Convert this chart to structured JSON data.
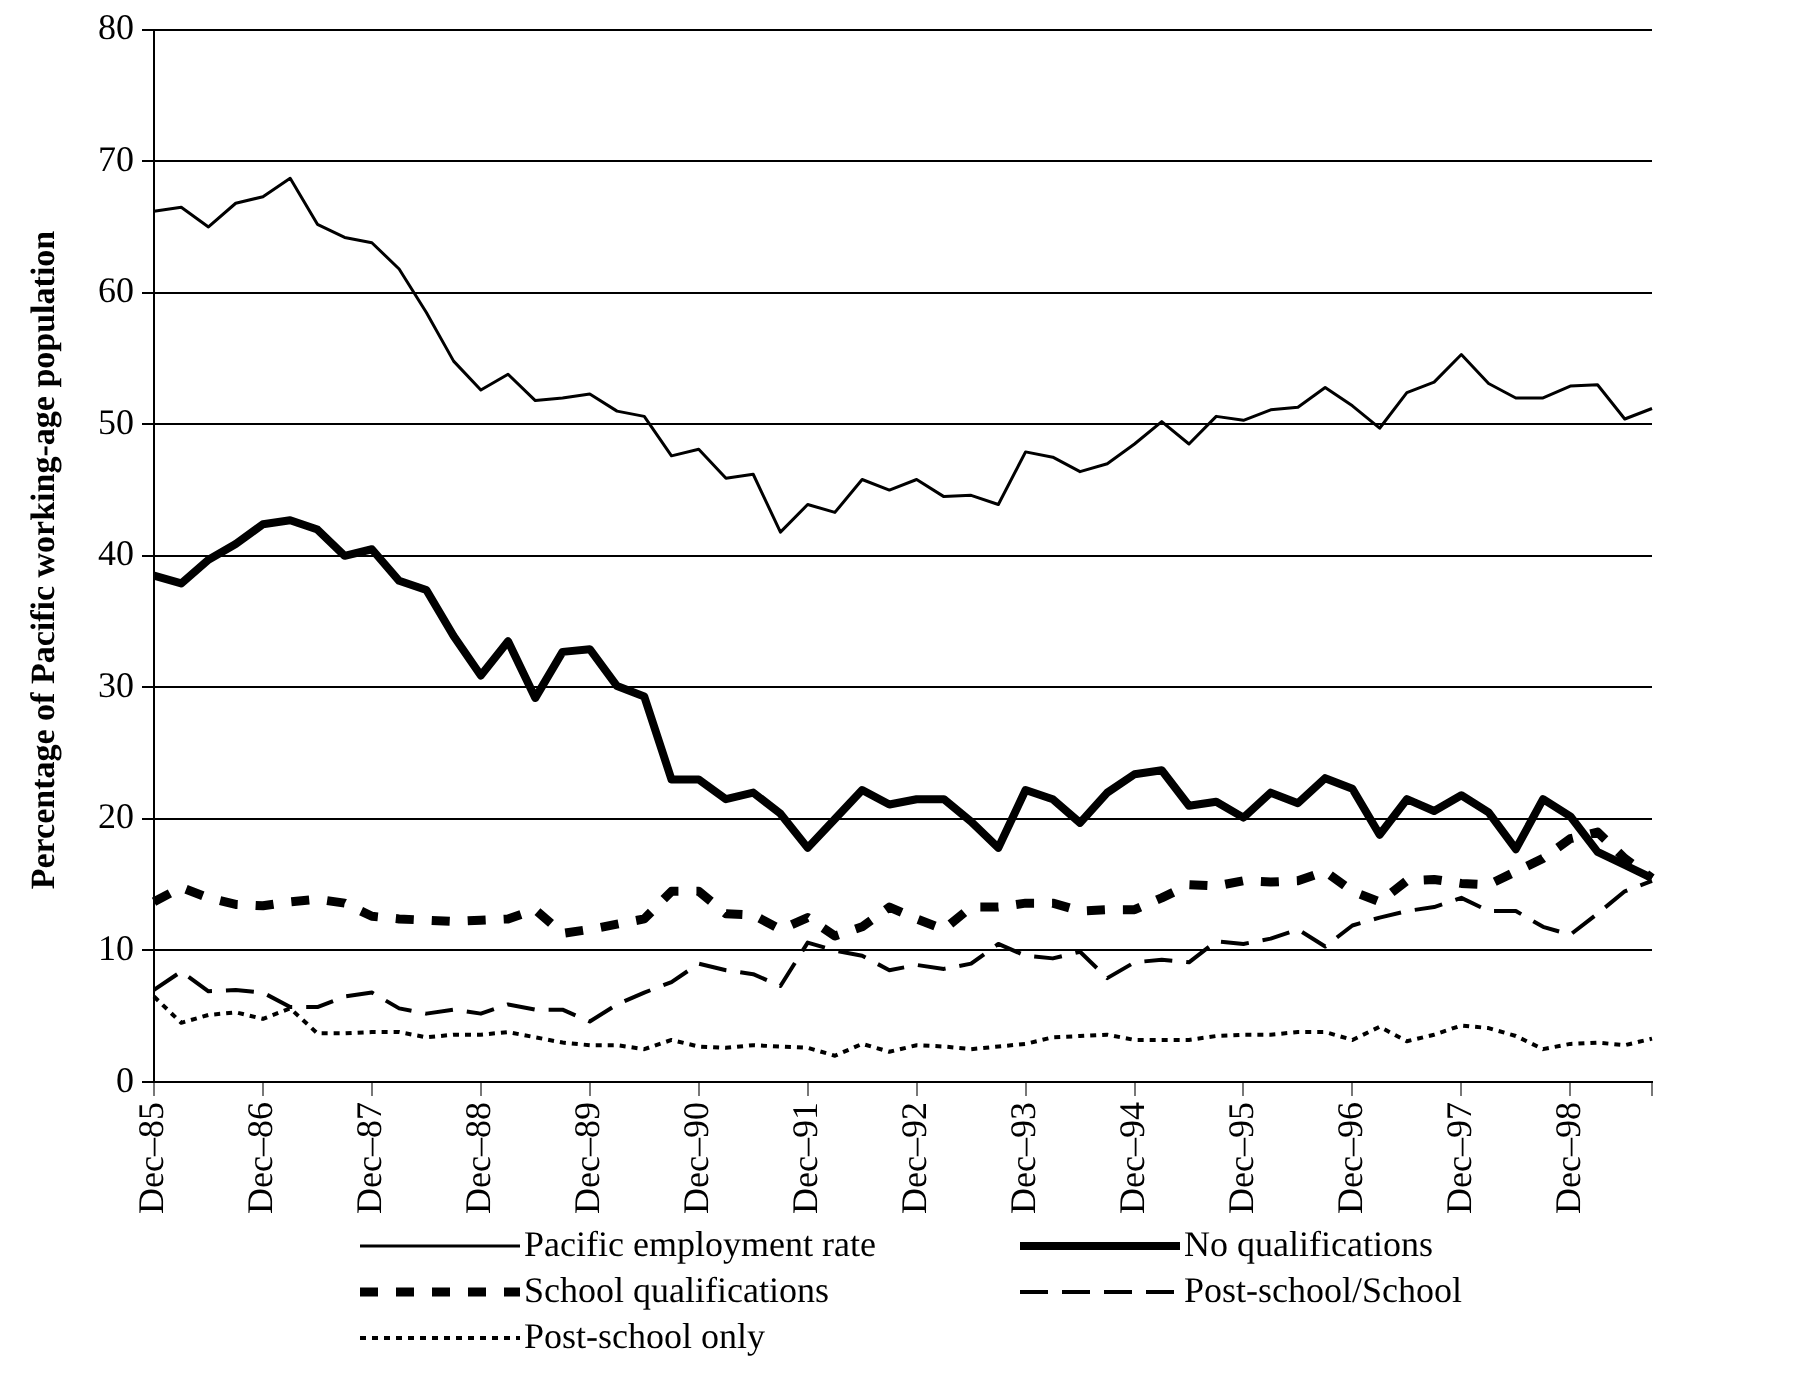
{
  "chart_data": {
    "type": "line",
    "ylabel": "Percentage of Pacific working-age population",
    "categories": [
      "Dec–85",
      null,
      null,
      null,
      "Dec–86",
      null,
      null,
      null,
      "Dec–87",
      null,
      null,
      null,
      "Dec–88",
      null,
      null,
      null,
      "Dec–89",
      null,
      null,
      null,
      "Dec–90",
      null,
      null,
      null,
      "Dec–91",
      null,
      null,
      null,
      "Dec–92",
      null,
      null,
      null,
      "Dec–93",
      null,
      null,
      null,
      "Dec–94",
      null,
      null,
      null,
      "Dec–95",
      null,
      null,
      null,
      "Dec–96",
      null,
      null,
      null,
      "Dec–97",
      null,
      null,
      null,
      "Dec–98",
      null,
      null,
      null
    ],
    "ylim": [
      0,
      80
    ],
    "yticks": [
      0,
      10,
      20,
      30,
      40,
      50,
      60,
      70,
      80
    ],
    "grid": "y",
    "legend": "bottom",
    "marker": "none",
    "series": [
      {
        "name": "Pacific employment rate",
        "color": "#000000",
        "line_style": "solid",
        "values": [
          66.2,
          66.5,
          65,
          66.8,
          67.3,
          68.7,
          65.2,
          64.2,
          63.8,
          61.8,
          58.5,
          54.8,
          52.6,
          53.8,
          51.8,
          52,
          52.3,
          51,
          50.6,
          47.6,
          48.1,
          45.9,
          46.2,
          41.8,
          43.9,
          43.3,
          45.8,
          45,
          45.8,
          44.5,
          44.6,
          43.9,
          47.9,
          47.5,
          46.4,
          47,
          48.5,
          50.2,
          48.5,
          50.6,
          50.3,
          51.1,
          51.3,
          52.8,
          51.4,
          49.7,
          52.4,
          53.2,
          55.3,
          53.1,
          52,
          52,
          52.9,
          53,
          50.4,
          51.2
        ]
      },
      {
        "name": "No qualifications",
        "color": "#000000",
        "line_style": "solid",
        "values": [
          38.5,
          37.9,
          39.7,
          40.9,
          42.4,
          42.7,
          42,
          40,
          40.5,
          38.1,
          37.4,
          33.9,
          30.9,
          33.5,
          29.2,
          32.7,
          32.9,
          30.1,
          29.3,
          23,
          23,
          21.5,
          22,
          20.4,
          17.8,
          20,
          22.2,
          21.1,
          21.5,
          21.5,
          19.8,
          17.8,
          22.2,
          21.5,
          19.7,
          22,
          23.4,
          23.7,
          21,
          21.3,
          20.1,
          22,
          21.2,
          23.1,
          22.3,
          18.8,
          21.5,
          20.6,
          21.8,
          20.5,
          17.7,
          21.5,
          20.2,
          17.5,
          16.5,
          15.5
        ]
      },
      {
        "name": "School qualifications",
        "color": "#000000",
        "line_style": "dashed",
        "values": [
          13.7,
          14.8,
          14,
          13.5,
          13.4,
          13.7,
          13.9,
          13.6,
          12.6,
          12.4,
          12.3,
          12.2,
          12.3,
          12.4,
          13.1,
          11.3,
          11.6,
          12,
          12.4,
          14.5,
          14.5,
          12.8,
          12.7,
          11.6,
          12.5,
          11.1,
          11.8,
          13.3,
          12.4,
          11.6,
          13.3,
          13.3,
          13.6,
          13.6,
          13,
          13.1,
          13.1,
          14,
          15,
          14.9,
          15.3,
          15.2,
          15.3,
          16,
          14.5,
          13.7,
          15.3,
          15.4,
          15.1,
          15,
          16,
          17,
          18.5,
          19,
          17,
          15.5
        ]
      },
      {
        "name": "Post-school/School",
        "color": "#000000",
        "line_style": "dashed",
        "values": [
          7,
          8.4,
          6.9,
          7,
          6.8,
          5.7,
          5.7,
          6.5,
          6.8,
          5.6,
          5.2,
          5.5,
          5.2,
          5.9,
          5.5,
          5.5,
          4.6,
          5.9,
          6.8,
          7.6,
          9,
          8.5,
          8.2,
          7.3,
          10.6,
          10,
          9.6,
          8.5,
          8.9,
          8.6,
          9,
          10.5,
          9.6,
          9.4,
          9.9,
          7.9,
          9.1,
          9.3,
          9.1,
          10.7,
          10.5,
          10.9,
          11.6,
          10.3,
          11.9,
          12.5,
          13,
          13.3,
          14,
          13,
          13,
          11.8,
          11.2,
          12.8,
          14.5,
          15.3
        ]
      },
      {
        "name": "Post-school only",
        "color": "#000000",
        "line_style": "dotted",
        "values": [
          6.5,
          4.5,
          5.1,
          5.3,
          4.8,
          5.6,
          3.7,
          3.7,
          3.8,
          3.8,
          3.4,
          3.6,
          3.6,
          3.8,
          3.4,
          3,
          2.8,
          2.8,
          2.5,
          3.2,
          2.7,
          2.6,
          2.8,
          2.7,
          2.6,
          2,
          2.9,
          2.3,
          2.8,
          2.7,
          2.5,
          2.7,
          2.9,
          3.4,
          3.5,
          3.6,
          3.2,
          3.2,
          3.2,
          3.5,
          3.6,
          3.6,
          3.8,
          3.8,
          3.2,
          4.2,
          3.1,
          3.6,
          4.3,
          4.1,
          3.5,
          2.5,
          2.9,
          3,
          2.8,
          3.3
        ]
      }
    ]
  }
}
